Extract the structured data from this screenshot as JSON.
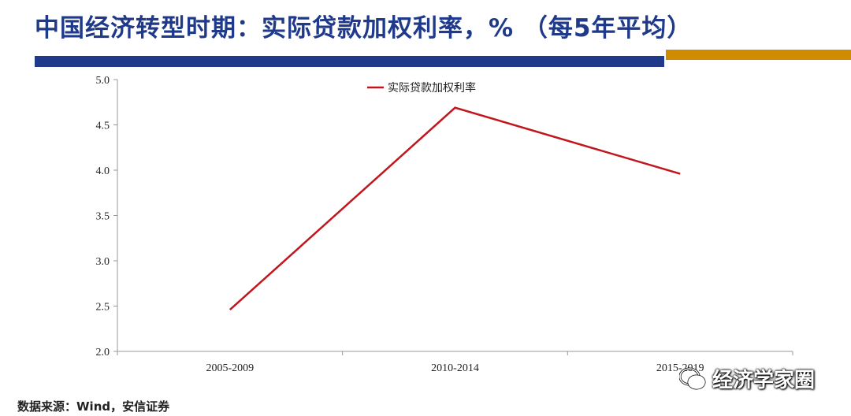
{
  "header": {
    "title": "中国经济转型时期：实际贷款加权利率，% （每5年平均）"
  },
  "footer": {
    "source": "数据来源：Wind，安信证券"
  },
  "watermark": {
    "text": "经济学家圈",
    "icon": "wechat-icon"
  },
  "colors": {
    "title": "#1f3a8a",
    "accent_bar": "#1f3a8a",
    "accent_bar_2": "#d08c00",
    "series_line": "#c0161c"
  },
  "chart_data": {
    "type": "line",
    "title": "",
    "xlabel": "",
    "ylabel": "",
    "categories": [
      "2005-2009",
      "2010-2014",
      "2015-2019"
    ],
    "series": [
      {
        "name": "实际贷款加权利率",
        "values": [
          2.46,
          4.69,
          3.96
        ],
        "color": "#c0161c"
      }
    ],
    "ylim": [
      2.0,
      5.0
    ],
    "yticks": [
      "2.0",
      "2.5",
      "3.0",
      "3.5",
      "4.0",
      "4.5",
      "5.0"
    ],
    "grid": false,
    "legend": "top-center"
  }
}
